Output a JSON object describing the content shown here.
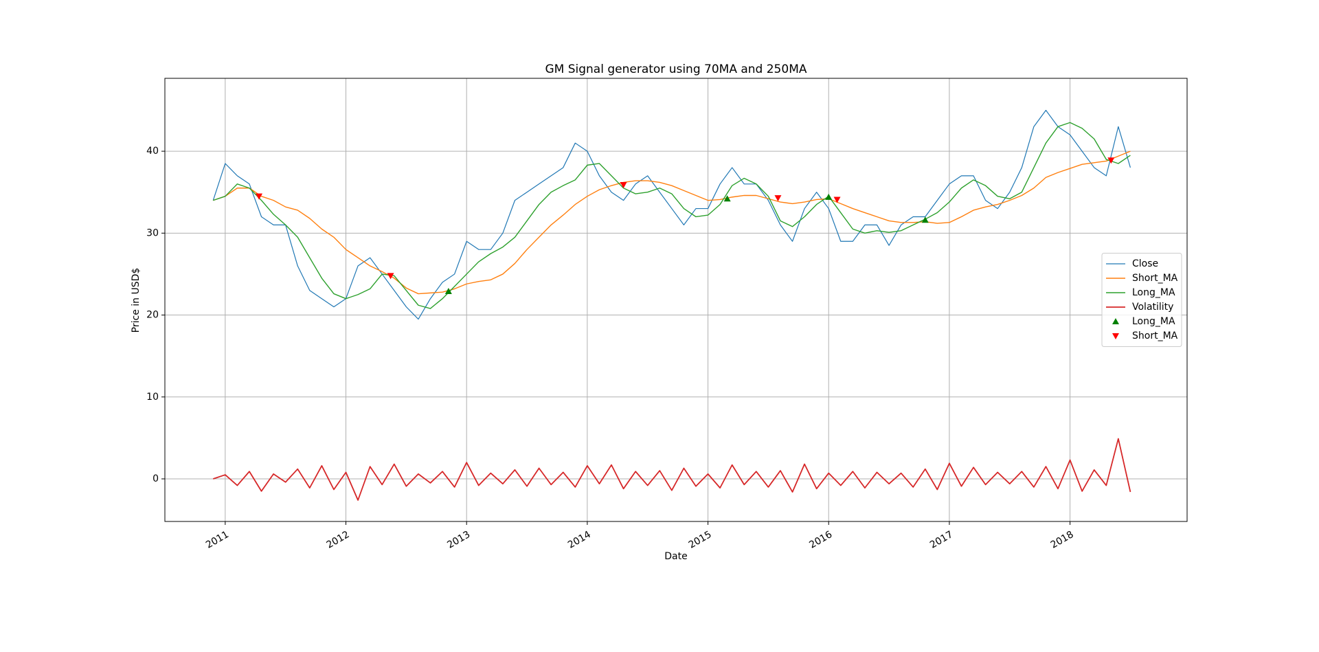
{
  "chart_data": {
    "type": "line",
    "title": "GM Signal generator using 70MA and 250MA",
    "xlabel": "Date",
    "ylabel": "Price in USD$",
    "x": [
      2010.9,
      2011.0,
      2011.1,
      2011.2,
      2011.3,
      2011.4,
      2011.5,
      2011.6,
      2011.7,
      2011.8,
      2011.9,
      2012.0,
      2012.1,
      2012.2,
      2012.3,
      2012.4,
      2012.5,
      2012.6,
      2012.7,
      2012.8,
      2012.9,
      2013.0,
      2013.1,
      2013.2,
      2013.3,
      2013.4,
      2013.5,
      2013.6,
      2013.7,
      2013.8,
      2013.9,
      2014.0,
      2014.1,
      2014.2,
      2014.3,
      2014.4,
      2014.5,
      2014.6,
      2014.7,
      2014.8,
      2014.9,
      2015.0,
      2015.1,
      2015.2,
      2015.3,
      2015.4,
      2015.5,
      2015.6,
      2015.7,
      2015.8,
      2015.9,
      2016.0,
      2016.1,
      2016.2,
      2016.3,
      2016.4,
      2016.5,
      2016.6,
      2016.7,
      2016.8,
      2016.9,
      2017.0,
      2017.1,
      2017.2,
      2017.3,
      2017.4,
      2017.5,
      2017.6,
      2017.7,
      2017.8,
      2017.9,
      2018.0,
      2018.1,
      2018.2,
      2018.3,
      2018.4,
      2018.5
    ],
    "series": [
      {
        "name": "Close",
        "color": "#1f77b4",
        "width": 1.2,
        "values": [
          34,
          38.5,
          37,
          36,
          32,
          31,
          31,
          26,
          23,
          22,
          21,
          22,
          26,
          27,
          25,
          23,
          21,
          19.5,
          22,
          24,
          25,
          29,
          28,
          28,
          30,
          34,
          35,
          36,
          37,
          38,
          41,
          40,
          37,
          35,
          34,
          36,
          37,
          35,
          33,
          31,
          33,
          33,
          36,
          38,
          36,
          36,
          34,
          31,
          29,
          33,
          35,
          33,
          29,
          29,
          31,
          31,
          28.5,
          31,
          32,
          32,
          34,
          36,
          37,
          37,
          34,
          33,
          35,
          38,
          43,
          45,
          43,
          42,
          40,
          38,
          37,
          43,
          38
        ]
      },
      {
        "name": "Short_MA",
        "color": "#ff7f0e",
        "width": 1.4,
        "values": [
          34,
          34.5,
          35.5,
          35.5,
          34.5,
          34,
          33.2,
          32.8,
          31.8,
          30.5,
          29.5,
          28,
          27,
          26,
          25.3,
          24.5,
          23.3,
          22.6,
          22.7,
          22.8,
          23.2,
          23.8,
          24.1,
          24.3,
          25,
          26.3,
          28,
          29.5,
          31,
          32.2,
          33.5,
          34.5,
          35.3,
          35.8,
          36.2,
          36.4,
          36.4,
          36.2,
          35.8,
          35.2,
          34.6,
          34,
          34.1,
          34.4,
          34.6,
          34.6,
          34.2,
          33.8,
          33.6,
          33.8,
          34.1,
          34.2,
          33.6,
          33,
          32.5,
          32,
          31.5,
          31.3,
          31.3,
          31.4,
          31.2,
          31.3,
          32,
          32.8,
          33.2,
          33.5,
          34,
          34.6,
          35.5,
          36.8,
          37.4,
          37.9,
          38.4,
          38.6,
          38.8,
          39.4,
          40
        ]
      },
      {
        "name": "Long_MA",
        "color": "#2ca02c",
        "width": 1.4,
        "values": [
          34,
          34.5,
          36,
          35.5,
          34,
          32.3,
          31,
          29.5,
          27,
          24.5,
          22.6,
          22,
          22.5,
          23.2,
          25,
          24.8,
          23,
          21.2,
          20.8,
          22,
          23.5,
          25,
          26.5,
          27.5,
          28.3,
          29.5,
          31.5,
          33.5,
          35,
          35.8,
          36.5,
          38.3,
          38.5,
          37,
          35.5,
          34.8,
          35,
          35.5,
          34.8,
          33,
          32,
          32.2,
          33.5,
          35.8,
          36.7,
          36,
          34.5,
          31.5,
          30.8,
          32,
          33.5,
          34.5,
          32.5,
          30.5,
          30,
          30.3,
          30.1,
          30.3,
          31,
          31.7,
          32.5,
          33.8,
          35.5,
          36.5,
          35.8,
          34.5,
          34.2,
          35,
          38,
          41,
          43,
          43.5,
          42.8,
          41.5,
          39,
          38.5,
          39.5
        ]
      },
      {
        "name": "Volatility",
        "color": "#d62728",
        "width": 1.8,
        "values": [
          0,
          0.5,
          -0.8,
          0.9,
          -1.5,
          0.6,
          -0.4,
          1.2,
          -1.1,
          1.6,
          -1.3,
          0.8,
          -2.6,
          1.5,
          -0.7,
          1.8,
          -0.9,
          0.6,
          -0.5,
          0.9,
          -1.0,
          2.0,
          -0.8,
          0.7,
          -0.6,
          1.1,
          -0.9,
          1.3,
          -0.7,
          0.8,
          -1.0,
          1.6,
          -0.6,
          1.7,
          -1.2,
          0.9,
          -0.8,
          1.0,
          -1.4,
          1.3,
          -0.9,
          0.6,
          -1.1,
          1.7,
          -0.7,
          0.9,
          -1.0,
          1.0,
          -1.6,
          1.8,
          -1.2,
          0.7,
          -0.8,
          0.9,
          -1.1,
          0.8,
          -0.6,
          0.7,
          -1.0,
          1.2,
          -1.3,
          1.9,
          -0.9,
          1.4,
          -0.7,
          0.8,
          -0.6,
          0.9,
          -1.0,
          1.5,
          -1.2,
          2.3,
          -1.5,
          1.1,
          -0.8,
          4.9,
          -1.6
        ]
      },
      {
        "name": "Long_MA",
        "color": "green",
        "marker": "triangle-up",
        "x": [
          2012.85,
          2015.16,
          2016.0,
          2016.8
        ],
        "values": [
          22.9,
          34.2,
          34.4,
          31.6
        ]
      },
      {
        "name": "Short_MA",
        "color": "red",
        "marker": "triangle-down",
        "x": [
          2011.28,
          2012.37,
          2014.3,
          2015.58,
          2016.07,
          2018.34
        ],
        "values": [
          34.5,
          24.8,
          35.9,
          34.3,
          34.1,
          38.9
        ]
      }
    ],
    "xlim": [
      2010.5,
      2018.97
    ],
    "xticks": [
      2011,
      2012,
      2013,
      2014,
      2015,
      2016,
      2017,
      2018
    ],
    "ylim": [
      -5.2,
      48.9
    ],
    "yticks": [
      0,
      10,
      20,
      30,
      40
    ],
    "grid": true,
    "legend": "center right"
  }
}
